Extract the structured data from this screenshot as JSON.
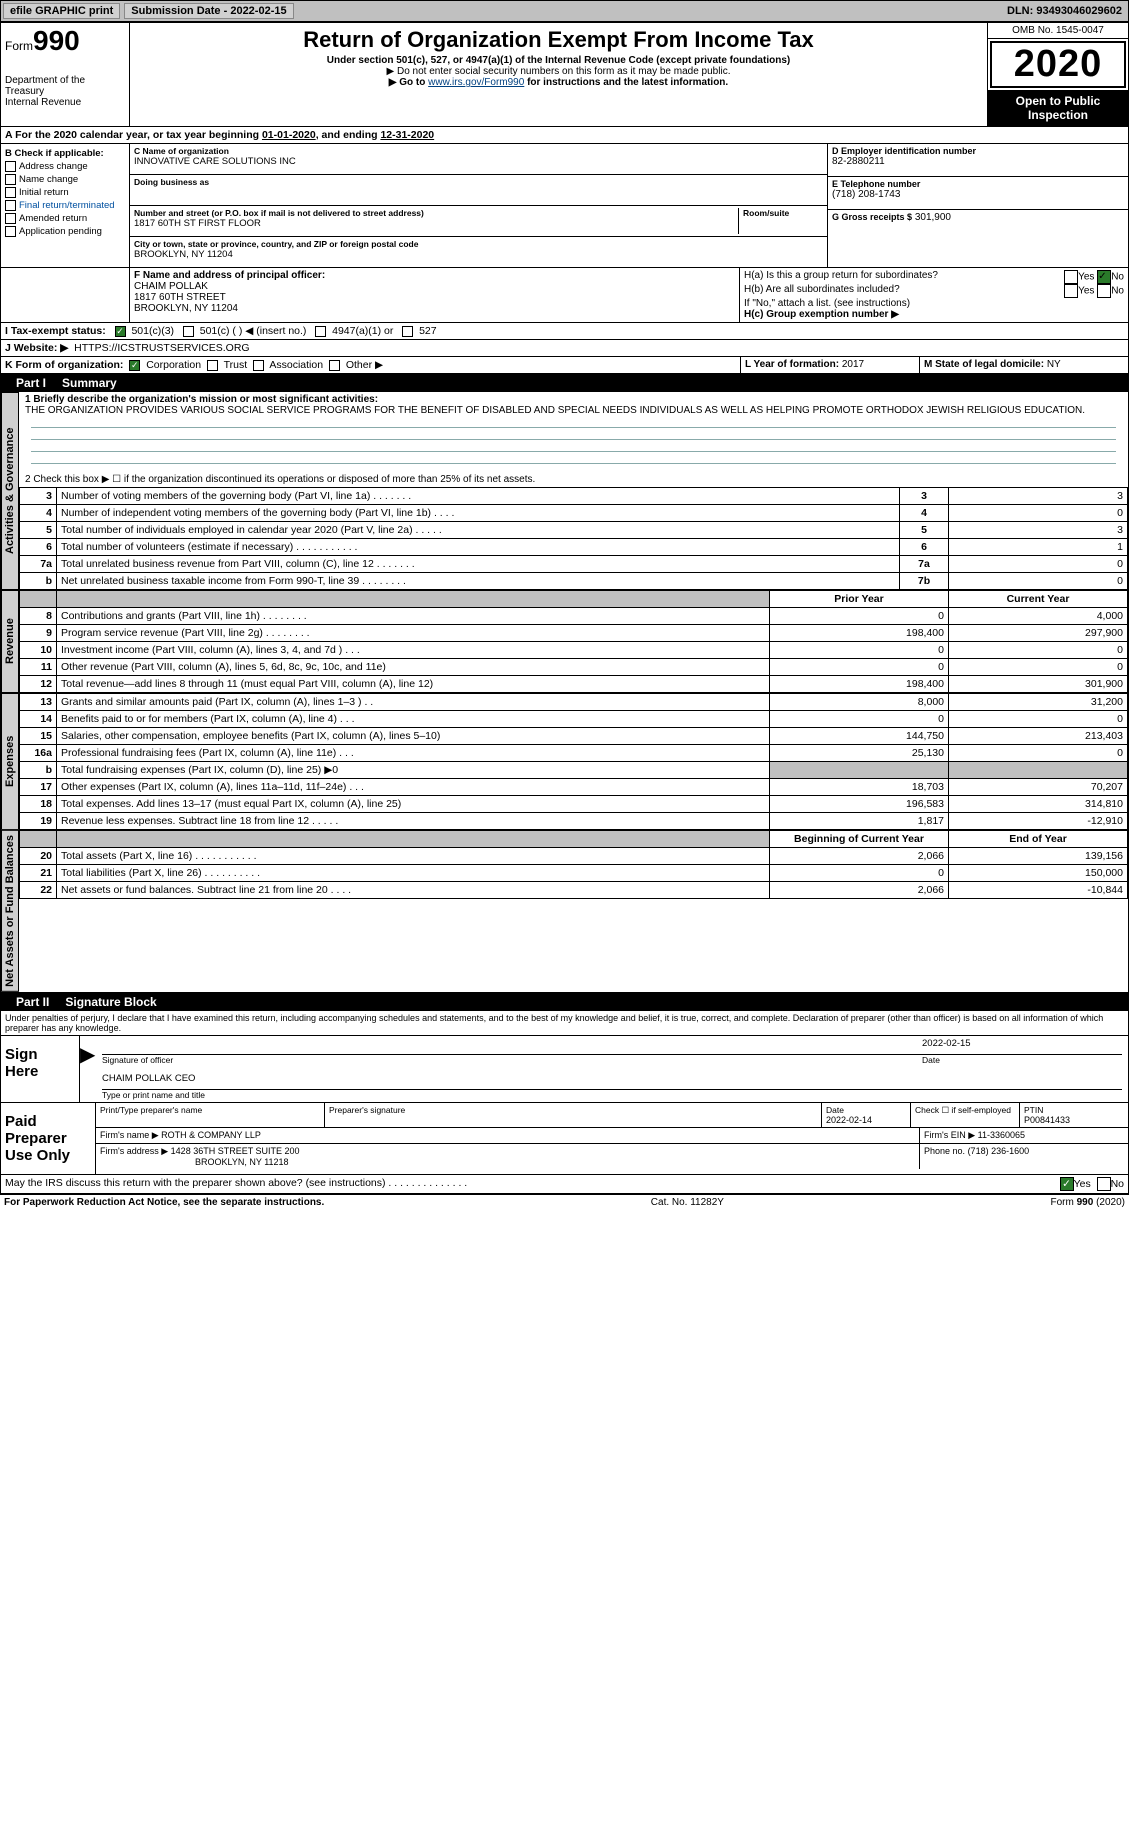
{
  "topbar": {
    "efile": "efile GRAPHIC print",
    "sub_label": "Submission Date - ",
    "sub_date": "2022-02-15",
    "dln_label": "DLN: ",
    "dln": "93493046029602"
  },
  "header": {
    "form_prefix": "Form",
    "form_no": "990",
    "dept": "Department of the Treasury\nInternal Revenue",
    "title": "Return of Organization Exempt From Income Tax",
    "subtitle": "Under section 501(c), 527, or 4947(a)(1) of the Internal Revenue Code (except private foundations)",
    "note1": "▶ Do not enter social security numbers on this form as it may be made public.",
    "note2_prefix": "▶ Go to ",
    "note2_link": "www.irs.gov/Form990",
    "note2_suffix": " for instructions and the latest information.",
    "omb": "OMB No. 1545-0047",
    "year": "2020",
    "open": "Open to Public Inspection"
  },
  "period": {
    "line_a_prefix": "A For the 2020 calendar year, or tax year beginning ",
    "begin": "01-01-2020",
    "mid": ", and ending ",
    "end": "12-31-2020"
  },
  "boxB": {
    "header": "B Check if applicable:",
    "addr": "Address change",
    "name": "Name change",
    "init": "Initial return",
    "final": "Final return/terminated",
    "amend": "Amended return",
    "app": "Application pending"
  },
  "boxC": {
    "label_name": "C Name of organization",
    "org_name": "INNOVATIVE CARE SOLUTIONS INC",
    "dba_label": "Doing business as",
    "dba": "",
    "addr_label": "Number and street (or P.O. box if mail is not delivered to street address)",
    "room_label": "Room/suite",
    "addr": "1817 60TH ST FIRST FLOOR",
    "city_label": "City or town, state or province, country, and ZIP or foreign postal code",
    "city": "BROOKLYN, NY  11204",
    "f_label": "F  Name and address of principal officer:",
    "f_name": "CHAIM POLLAK",
    "f_addr1": "1817 60TH STREET",
    "f_addr2": "BROOKLYN, NY  11204"
  },
  "boxD": {
    "label": "D Employer identification number",
    "ein": "82-2880211",
    "e_label": "E Telephone number",
    "phone": "(718) 208-1743",
    "g_label": "G Gross receipts $",
    "gross": "301,900"
  },
  "boxH": {
    "ha_label": "H(a)  Is this a group return for subordinates?",
    "hb_label": "H(b)  Are all subordinates included?",
    "hb_note": "If \"No,\" attach a list. (see instructions)",
    "hc_label": "H(c)  Group exemption number ▶",
    "yes": "Yes",
    "no": "No"
  },
  "lineI": {
    "label": "I    Tax-exempt status:",
    "o1": "501(c)(3)",
    "o2": "501(c) (  ) ◀ (insert no.)",
    "o3": "4947(a)(1) or",
    "o4": "527"
  },
  "lineJ": {
    "label": "J    Website: ▶",
    "value": "HTTPS://ICSTRUSTSERVICES.ORG"
  },
  "lineK": {
    "label": "K Form of organization:",
    "corp": "Corporation",
    "trust": "Trust",
    "assoc": "Association",
    "other": "Other ▶"
  },
  "lineL": {
    "label": "L Year of formation:",
    "value": "2017"
  },
  "lineM": {
    "label": "M State of legal domicile:",
    "value": "NY"
  },
  "part1": {
    "title": "Part I",
    "name": "Summary",
    "tab_gov": "Activities & Governance",
    "tab_rev": "Revenue",
    "tab_exp": "Expenses",
    "tab_net": "Net Assets or Fund Balances",
    "l1_label": "1   Briefly describe the organization's mission or most significant activities:",
    "l1_text": "THE ORGANIZATION PROVIDES VARIOUS SOCIAL SERVICE PROGRAMS FOR THE BENEFIT OF DISABLED AND SPECIAL NEEDS INDIVIDUALS AS WELL AS HELPING PROMOTE ORTHODOX JEWISH RELIGIOUS EDUCATION.",
    "l2": "2   Check this box ▶ ☐  if the organization discontinued its operations or disposed of more than 25% of its net assets.",
    "rows_gov": [
      {
        "n": "3",
        "label": "Number of voting members of the governing body (Part VI, line 1a)  .    .    .    .    .    .    .",
        "box": "3",
        "val": "3"
      },
      {
        "n": "4",
        "label": "Number of independent voting members of the governing body (Part VI, line 1b)  .    .    .    .",
        "box": "4",
        "val": "0"
      },
      {
        "n": "5",
        "label": "Total number of individuals employed in calendar year 2020 (Part V, line 2a)  .    .    .    .    .",
        "box": "5",
        "val": "3"
      },
      {
        "n": "6",
        "label": "Total number of volunteers (estimate if necessary)  .    .    .    .    .    .    .    .    .    .    .",
        "box": "6",
        "val": "1"
      },
      {
        "n": "7a",
        "label": "Total unrelated business revenue from Part VIII, column (C), line 12  .    .    .    .    .    .    .",
        "box": "7a",
        "val": "0"
      },
      {
        "n": "b",
        "label": "Net unrelated business taxable income from Form 990-T, line 39  .    .    .    .    .    .    .    .",
        "box": "7b",
        "val": "0"
      }
    ],
    "col_prior": "Prior Year",
    "col_curr": "Current Year",
    "rows_rev": [
      {
        "n": "8",
        "label": "Contributions and grants (Part VIII, line 1h)  .    .    .    .    .    .    .    .",
        "py": "0",
        "cy": "4,000"
      },
      {
        "n": "9",
        "label": "Program service revenue (Part VIII, line 2g)  .    .    .    .    .    .    .    .",
        "py": "198,400",
        "cy": "297,900"
      },
      {
        "n": "10",
        "label": "Investment income (Part VIII, column (A), lines 3, 4, and 7d )  .    .    .",
        "py": "0",
        "cy": "0"
      },
      {
        "n": "11",
        "label": "Other revenue (Part VIII, column (A), lines 5, 6d, 8c, 9c, 10c, and 11e)",
        "py": "0",
        "cy": "0"
      },
      {
        "n": "12",
        "label": "Total revenue—add lines 8 through 11 (must equal Part VIII, column (A), line 12)",
        "py": "198,400",
        "cy": "301,900"
      }
    ],
    "rows_exp": [
      {
        "n": "13",
        "label": "Grants and similar amounts paid (Part IX, column (A), lines 1–3 )  .    .",
        "py": "8,000",
        "cy": "31,200"
      },
      {
        "n": "14",
        "label": "Benefits paid to or for members (Part IX, column (A), line 4)  .    .    .",
        "py": "0",
        "cy": "0"
      },
      {
        "n": "15",
        "label": "Salaries, other compensation, employee benefits (Part IX, column (A), lines 5–10)",
        "py": "144,750",
        "cy": "213,403"
      },
      {
        "n": "16a",
        "label": "Professional fundraising fees (Part IX, column (A), line 11e)  .    .    .",
        "py": "25,130",
        "cy": "0"
      },
      {
        "n": "b",
        "label": "Total fundraising expenses (Part IX, column (D), line 25) ▶0",
        "py": "",
        "cy": "",
        "gray": true
      },
      {
        "n": "17",
        "label": "Other expenses (Part IX, column (A), lines 11a–11d, 11f–24e)  .    .    .",
        "py": "18,703",
        "cy": "70,207"
      },
      {
        "n": "18",
        "label": "Total expenses. Add lines 13–17 (must equal Part IX, column (A), line 25)",
        "py": "196,583",
        "cy": "314,810"
      },
      {
        "n": "19",
        "label": "Revenue less expenses. Subtract line 18 from line 12  .    .    .    .    .",
        "py": "1,817",
        "cy": "-12,910"
      }
    ],
    "col_begin": "Beginning of Current Year",
    "col_end": "End of Year",
    "rows_net": [
      {
        "n": "20",
        "label": "Total assets (Part X, line 16)  .    .    .    .    .    .    .    .    .    .    .",
        "py": "2,066",
        "cy": "139,156"
      },
      {
        "n": "21",
        "label": "Total liabilities (Part X, line 26)  .    .    .    .    .    .    .    .    .    .",
        "py": "0",
        "cy": "150,000"
      },
      {
        "n": "22",
        "label": "Net assets or fund balances. Subtract line 21 from line 20  .    .    .    .",
        "py": "2,066",
        "cy": "-10,844"
      }
    ]
  },
  "part2": {
    "title": "Part II",
    "name": "Signature Block",
    "penalties": "Under penalties of perjury, I declare that I have examined this return, including accompanying schedules and statements, and to the best of my knowledge and belief, it is true, correct, and complete. Declaration of preparer (other than officer) is based on all information of which preparer has any knowledge.",
    "sign_here": "Sign Here",
    "sig_date": "2022-02-15",
    "sig_officer_lab": "Signature of officer",
    "sig_date_lab": "Date",
    "officer_name": "CHAIM POLLAK CEO",
    "officer_name_lab": "Type or print name and title",
    "paid": "Paid Preparer Use Only",
    "prep_name_lab": "Print/Type preparer's name",
    "prep_sig_lab": "Preparer's signature",
    "prep_date_lab": "Date",
    "prep_date": "2022-02-14",
    "prep_self_lab": "Check ☐ if self-employed",
    "ptin_lab": "PTIN",
    "ptin": "P00841433",
    "firm_name_lab": "Firm's name    ▶",
    "firm_name": "ROTH & COMPANY LLP",
    "firm_ein_lab": "Firm's EIN ▶",
    "firm_ein": "11-3360065",
    "firm_addr_lab": "Firm's address ▶",
    "firm_addr": "1428 36TH STREET SUITE 200",
    "firm_city": "BROOKLYN, NY  11218",
    "firm_phone_lab": "Phone no.",
    "firm_phone": "(718) 236-1600",
    "discuss": "May the IRS discuss this return with the preparer shown above? (see instructions)  .    .    .    .    .    .    .    .    .    .    .    .    .    .",
    "yes": "Yes",
    "no": "No"
  },
  "footer": {
    "left": "For Paperwork Reduction Act Notice, see the separate instructions.",
    "mid": "Cat. No. 11282Y",
    "right": "Form 990 (2020)"
  },
  "colors": {
    "link": "#004080",
    "header_bg": "#000000",
    "gray": "#c0c0c0"
  }
}
